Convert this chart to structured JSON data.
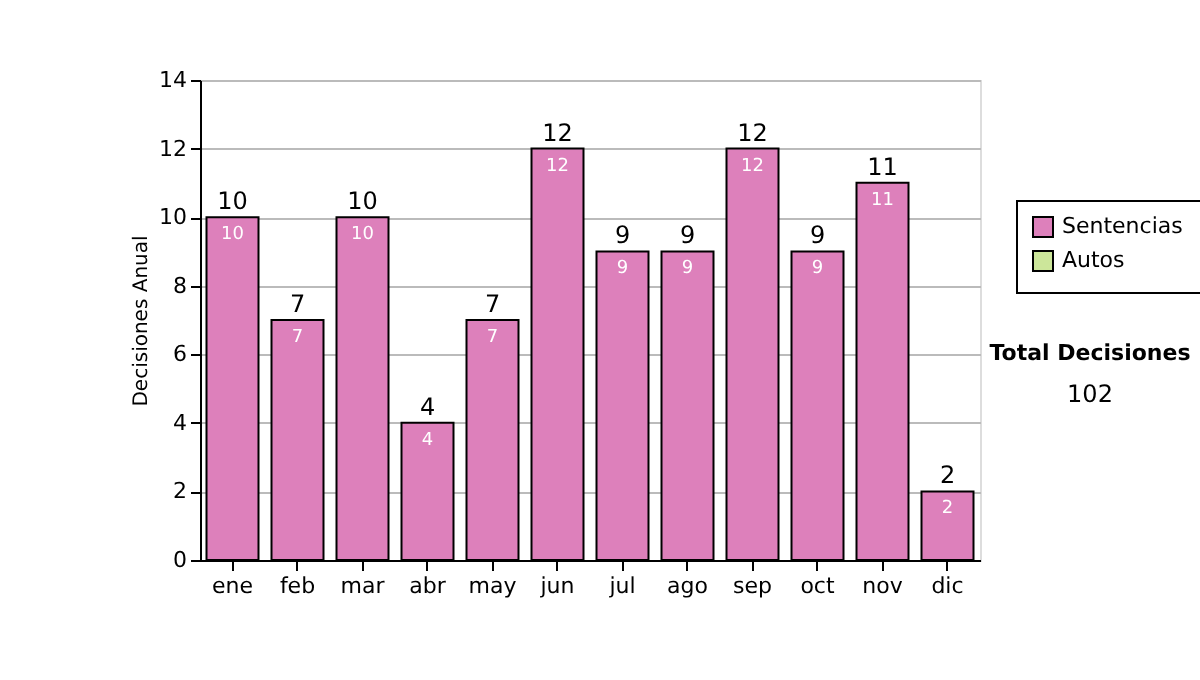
{
  "chart_data": {
    "type": "bar",
    "ylabel": "Decisiones Anual",
    "categories": [
      "ene",
      "feb",
      "mar",
      "abr",
      "may",
      "jun",
      "jul",
      "ago",
      "sep",
      "oct",
      "nov",
      "dic"
    ],
    "series": [
      {
        "name": "Sentencias",
        "color": "#dd80bb",
        "values": [
          10,
          7,
          10,
          4,
          7,
          12,
          9,
          9,
          12,
          9,
          11,
          2
        ],
        "value_labels": [
          "10",
          "7",
          "10",
          "4",
          "7",
          "12",
          "9",
          "9",
          "12",
          "9",
          "11",
          "2"
        ]
      },
      {
        "name": "Autos",
        "color": "#cce69a",
        "values": [
          0,
          0,
          0,
          0,
          0,
          0,
          0,
          0,
          0,
          0,
          0,
          0
        ]
      }
    ],
    "stacked": true,
    "totals": [
      "10",
      "7",
      "10",
      "4",
      "7",
      "12",
      "9",
      "9",
      "12",
      "9",
      "11",
      "2"
    ],
    "ylim": [
      0,
      14
    ],
    "yticks": [
      0,
      2,
      4,
      6,
      8,
      10,
      12,
      14
    ],
    "grid": "y",
    "legend": "right",
    "annotations": [
      "Total Decisiones",
      "102"
    ]
  }
}
